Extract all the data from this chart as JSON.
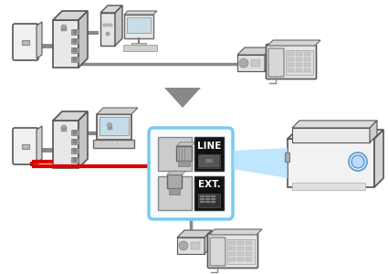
{
  "bg_color": "#ffffff",
  "red_cable": "#dd0000",
  "gray_cable": "#888888",
  "dark_gray": "#555555",
  "rounded_box_color": "#77ccee",
  "blue_beam_color": "#aaddff",
  "line_text": "LINE",
  "ext_text": "EXT.",
  "arrow_color": "#777777",
  "black_box": "#111111",
  "white": "#ffffff",
  "light_gray": "#e8e8e8",
  "mid_gray": "#cccccc",
  "wall_face": "#f0f0f0",
  "modem_face": "#e8e8e8",
  "modem_top": "#d0d0d0",
  "modem_side": "#c0c0c0",
  "printer_body": "#f0f0f0",
  "printer_top": "#e0e0e0",
  "plug_gray": "#aaaaaa",
  "plug_dark": "#888888"
}
